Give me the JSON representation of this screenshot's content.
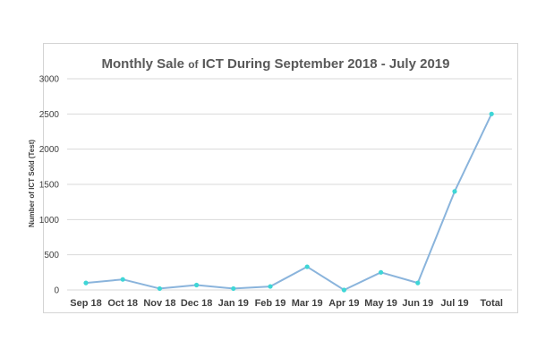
{
  "chart_data": {
    "type": "line",
    "title": {
      "part1": "Monthly Sale ",
      "part2": "of",
      "part3": " ICT During September 2018 - July 2019"
    },
    "xlabel": "",
    "ylabel": "Number of ICT Sold (Test)",
    "categories": [
      "Sep 18",
      "Oct 18",
      "Nov 18",
      "Dec  18",
      "Jan 19",
      "Feb 19",
      "Mar 19",
      "Apr 19",
      "May 19",
      "Jun 19",
      "Jul 19",
      "Total"
    ],
    "series": [
      {
        "name": "ICT Sold",
        "values": [
          100,
          150,
          20,
          70,
          20,
          50,
          330,
          0,
          250,
          100,
          1400,
          2500
        ]
      }
    ],
    "ylim": [
      0,
      3000
    ],
    "yticks": [
      0,
      500,
      1000,
      1500,
      2000,
      2500,
      3000
    ],
    "grid": true,
    "legend": "none",
    "colors": {
      "line": "#8ab4dc",
      "marker": "#3fd6d6",
      "grid": "#d9d9d9"
    }
  }
}
